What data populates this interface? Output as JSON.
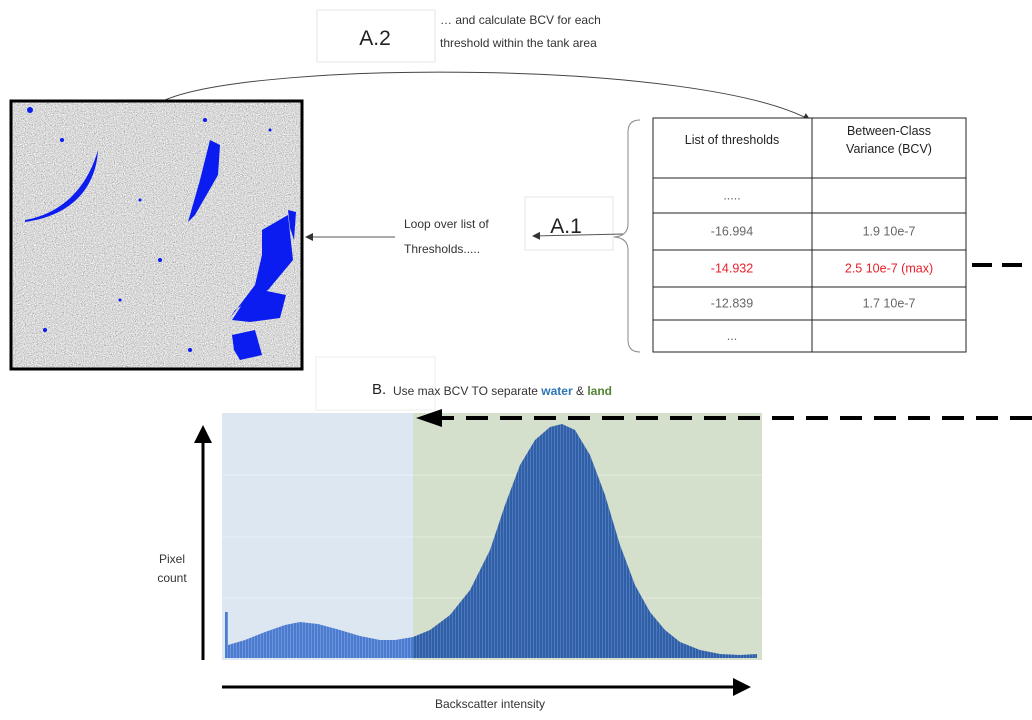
{
  "a2": {
    "label": "A.2",
    "text": [
      "… and calculate BCV for each",
      "threshold within the tank area"
    ]
  },
  "a1": {
    "label": "A.1",
    "text": [
      "Loop over list of",
      "Thresholds....."
    ]
  },
  "table": {
    "header": [
      [
        "List of thresholds"
      ],
      [
        "Between-Class",
        "Variance (BCV)"
      ]
    ],
    "rows": [
      {
        "cells": [
          "....."
        ]
      },
      {
        "cells": [
          "-16.994",
          "1.9 10e-7"
        ]
      },
      {
        "cells": [
          "-14.932",
          "2.5 10e-7 (max)"
        ],
        "color": "#e8202a"
      },
      {
        "cells": [
          "-12.839",
          "1.7 10e-7"
        ]
      },
      {
        "cells": [
          "..."
        ]
      }
    ]
  },
  "b": {
    "label": "B.",
    "text": [
      {
        "text": "Use max BCV TO separate "
      },
      {
        "text": "water",
        "color": "#2e75b6"
      },
      {
        "text": " & "
      },
      {
        "text": "land",
        "color": "#548235"
      }
    ]
  },
  "histogram": {
    "y_label": [
      "Pixel",
      "count"
    ],
    "x_label": "Backscatter intensity"
  }
}
